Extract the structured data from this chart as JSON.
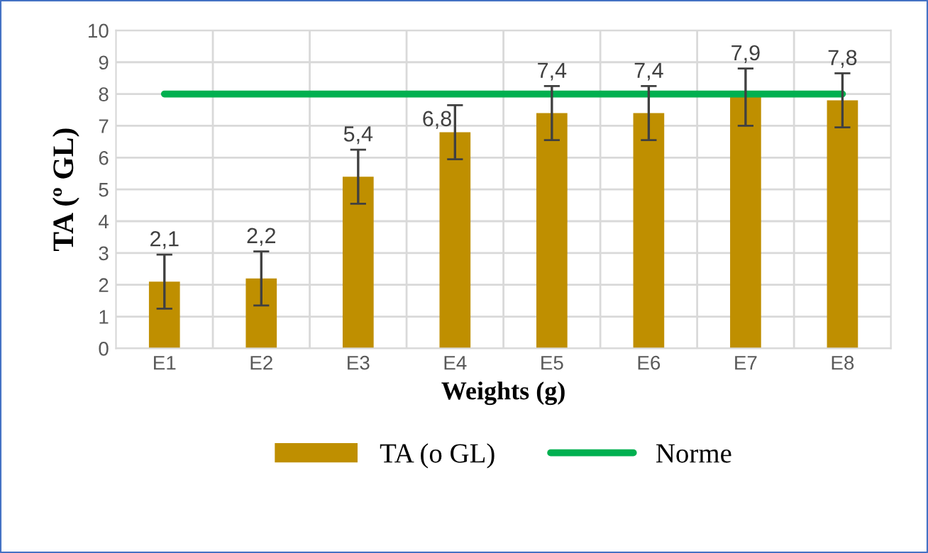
{
  "chart_data": {
    "type": "bar",
    "xlabel": "Weights (g)",
    "ylabel": "TA (º GL)",
    "categories": [
      "E1",
      "E2",
      "E3",
      "E4",
      "E5",
      "E6",
      "E7",
      "E8"
    ],
    "series": [
      {
        "name": "TA (o GL)",
        "color": "#bf8f00",
        "values": [
          2.1,
          2.2,
          5.4,
          6.8,
          7.4,
          7.4,
          7.9,
          7.8
        ],
        "errors": [
          0.85,
          0.85,
          0.85,
          0.85,
          0.85,
          0.85,
          0.9,
          0.85
        ],
        "value_labels": [
          "2,1",
          "2,2",
          "5,4",
          "6,8",
          "7,4",
          "7,4",
          "7,9",
          "7,8"
        ]
      },
      {
        "name": "Norme",
        "type": "line",
        "color": "#00b050",
        "values": [
          8,
          8,
          8,
          8,
          8,
          8,
          8,
          8
        ]
      }
    ],
    "ylim": [
      0,
      10
    ],
    "yticks": [
      0,
      1,
      2,
      3,
      4,
      5,
      6,
      7,
      8,
      9,
      10
    ],
    "grid": true,
    "legend": "bottom",
    "marker": "none"
  }
}
